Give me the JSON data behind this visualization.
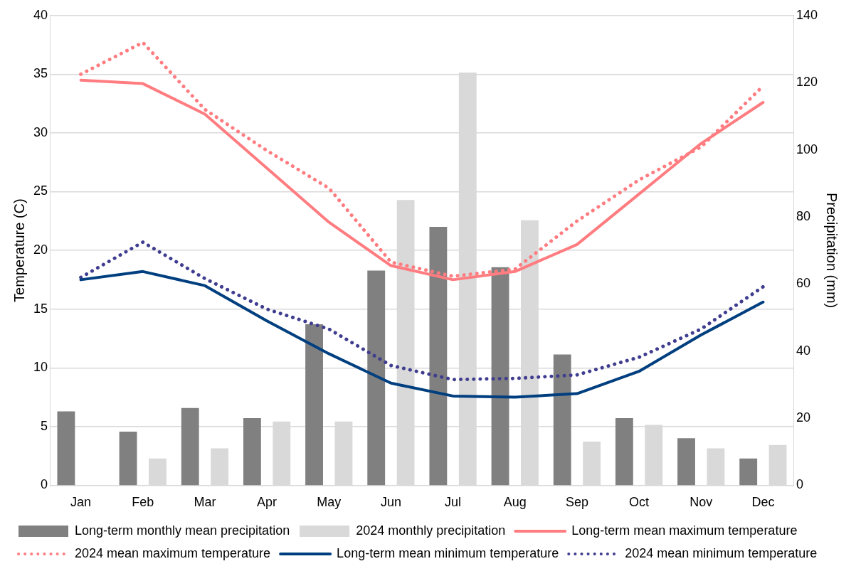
{
  "chart_data": {
    "type": "bar",
    "categories": [
      "Jan",
      "Feb",
      "Mar",
      "Apr",
      "May",
      "Jun",
      "Jul",
      "Aug",
      "Sep",
      "Oct",
      "Nov",
      "Dec"
    ],
    "ylabel": "Temperature (C)",
    "y2label": "Precipitation (mm)",
    "ylim": [
      0,
      40
    ],
    "yticks": [
      0,
      5,
      10,
      15,
      20,
      25,
      30,
      35,
      40
    ],
    "y2lim": [
      0,
      140
    ],
    "y2ticks": [
      0,
      20,
      40,
      60,
      80,
      100,
      120,
      140
    ],
    "grid": "y",
    "legend": "bottom",
    "series": [
      {
        "name": "Long-term monthly mean precipitation",
        "axis": "y2",
        "color": "#808080",
        "values": [
          22,
          16,
          23,
          20,
          48,
          64,
          77,
          65,
          39,
          20,
          14,
          8
        ]
      },
      {
        "name": "2024 monthly precipitation",
        "axis": "y2",
        "color": "#d9d9d9",
        "values": [
          0,
          8,
          11,
          19,
          19,
          85,
          123,
          79,
          13,
          18,
          11,
          12
        ]
      },
      {
        "name": "Long-term mean maximum temperature",
        "type": "line",
        "line_style": "solid",
        "color": "#ff7c80",
        "values": [
          34.5,
          34.2,
          31.6,
          27,
          22.4,
          18.7,
          17.5,
          18.2,
          20.5,
          24.8,
          29.1,
          32.6
        ]
      },
      {
        "name": "2024 mean maximum temperature",
        "type": "line",
        "line_style": "dotted",
        "color": "#ff7c80",
        "values": [
          35,
          37.7,
          32,
          28.5,
          25.3,
          19,
          17.8,
          18.4,
          22.5,
          26,
          28.8,
          34
        ]
      },
      {
        "name": "Long-term mean minimum temperature",
        "type": "line",
        "line_style": "solid",
        "color": "#003f7f",
        "values": [
          17.5,
          18.2,
          17,
          14,
          11.2,
          8.7,
          7.6,
          7.5,
          7.8,
          9.7,
          12.8,
          15.6
        ]
      },
      {
        "name": "2024 mean minimum temperature",
        "type": "line",
        "line_style": "dotted",
        "color": "#3f3d8f",
        "values": [
          17.7,
          20.7,
          17.6,
          15,
          13.3,
          10.2,
          9,
          9.1,
          9.4,
          10.9,
          13.3,
          16.9
        ]
      }
    ]
  }
}
